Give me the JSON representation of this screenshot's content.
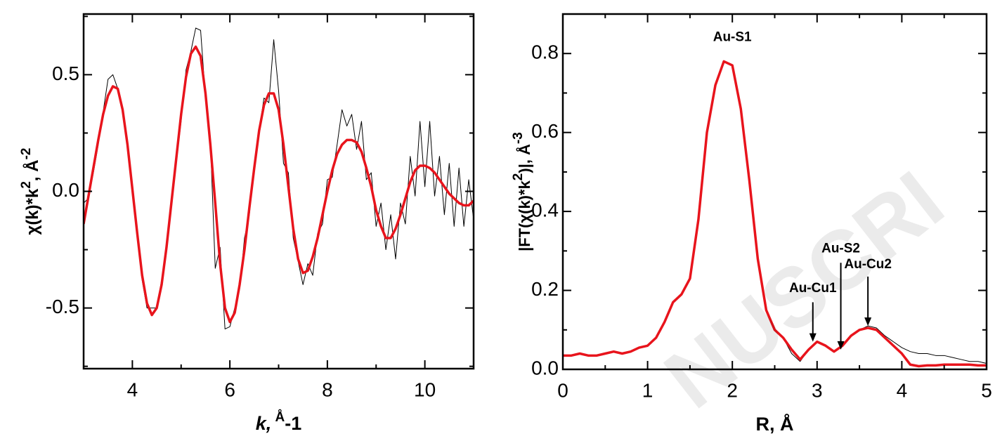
{
  "chart_data": [
    {
      "type": "line",
      "x": [
        3,
        3.1,
        3.2,
        3.3,
        3.4,
        3.5,
        3.6,
        3.7,
        3.8,
        3.9,
        4,
        4.1,
        4.2,
        4.3,
        4.4,
        4.5,
        4.6,
        4.7,
        4.8,
        4.9,
        5,
        5.1,
        5.2,
        5.3,
        5.4,
        5.5,
        5.6,
        5.7,
        5.8,
        5.9,
        6,
        6.1,
        6.2,
        6.3,
        6.4,
        6.5,
        6.6,
        6.7,
        6.8,
        6.9,
        7,
        7.1,
        7.2,
        7.3,
        7.4,
        7.5,
        7.6,
        7.7,
        7.8,
        7.9,
        8,
        8.1,
        8.2,
        8.3,
        8.4,
        8.5,
        8.6,
        8.7,
        8.8,
        8.9,
        9,
        9.1,
        9.2,
        9.3,
        9.4,
        9.5,
        9.6,
        9.7,
        9.8,
        9.9,
        10,
        10.1,
        10.2,
        10.3,
        10.4,
        10.5,
        10.6,
        10.7,
        10.8,
        10.9,
        11
      ],
      "series": [
        {
          "color": "#000000",
          "width": 1,
          "values": [
            -0.05,
            -0.03,
            0.08,
            0.2,
            0.34,
            0.48,
            0.5,
            0.44,
            0.36,
            0.2,
            0.02,
            -0.2,
            -0.38,
            -0.5,
            -0.5,
            -0.5,
            -0.38,
            -0.26,
            -0.04,
            0.12,
            0.3,
            0.52,
            0.6,
            0.7,
            0.69,
            0.4,
            0.22,
            -0.33,
            -0.24,
            -0.59,
            -0.58,
            -0.5,
            -0.42,
            -0.2,
            -0.1,
            0.12,
            0.26,
            0.4,
            0.38,
            0.65,
            0.43,
            0.12,
            0.08,
            -0.2,
            -0.3,
            -0.4,
            -0.31,
            -0.36,
            -0.18,
            -0.14,
            0.05,
            0.06,
            0.2,
            0.35,
            0.28,
            0.33,
            0.18,
            0.3,
            0.05,
            0.08,
            -0.15,
            -0.05,
            -0.25,
            -0.1,
            -0.29,
            -0.05,
            -0.14,
            0.15,
            -0.02,
            0.3,
            0.02,
            0.3,
            -0.02,
            0.15,
            -0.1,
            0.12,
            -0.15,
            0.1,
            -0.15,
            0.05,
            -0.12
          ]
        },
        {
          "color": "#e8141c",
          "width": 3.5,
          "values": [
            -0.14,
            -0.02,
            0.1,
            0.22,
            0.33,
            0.41,
            0.45,
            0.44,
            0.35,
            0.2,
            0.01,
            -0.18,
            -0.36,
            -0.48,
            -0.53,
            -0.5,
            -0.4,
            -0.24,
            -0.05,
            0.14,
            0.33,
            0.49,
            0.59,
            0.62,
            0.58,
            0.42,
            0.2,
            -0.05,
            -0.31,
            -0.5,
            -0.56,
            -0.52,
            -0.4,
            -0.25,
            -0.07,
            0.1,
            0.26,
            0.37,
            0.42,
            0.42,
            0.35,
            0.2,
            0.02,
            -0.16,
            -0.29,
            -0.35,
            -0.34,
            -0.28,
            -0.2,
            -0.1,
            0,
            0.09,
            0.16,
            0.2,
            0.22,
            0.22,
            0.21,
            0.17,
            0.1,
            0.02,
            -0.08,
            -0.15,
            -0.2,
            -0.2,
            -0.16,
            -0.1,
            -0.03,
            0.04,
            0.09,
            0.11,
            0.11,
            0.1,
            0.08,
            0.05,
            0.02,
            -0.01,
            -0.03,
            -0.05,
            -0.06,
            -0.06,
            -0.04
          ]
        }
      ],
      "xlim": [
        3,
        11
      ],
      "ylim": [
        -0.76,
        0.76
      ],
      "xticks": [
        4,
        6,
        8,
        10
      ],
      "yticks": [
        -0.5,
        {
          "value": 0,
          "label": "0.0"
        },
        0.5
      ],
      "xlabel_parts": [
        "k,",
        " Å",
        "-1"
      ],
      "ylabel_parts": [
        "χ(k)*k",
        "2",
        ", Å",
        "-2"
      ]
    },
    {
      "type": "line",
      "x": [
        0,
        0.1,
        0.2,
        0.3,
        0.4,
        0.5,
        0.6,
        0.7,
        0.8,
        0.9,
        1,
        1.1,
        1.2,
        1.3,
        1.4,
        1.5,
        1.6,
        1.7,
        1.8,
        1.9,
        2,
        2.1,
        2.2,
        2.3,
        2.4,
        2.5,
        2.6,
        2.7,
        2.8,
        2.9,
        3,
        3.1,
        3.2,
        3.3,
        3.4,
        3.5,
        3.6,
        3.7,
        3.8,
        3.9,
        4,
        4.1,
        4.2,
        4.3,
        4.4,
        4.5,
        4.6,
        4.7,
        4.8,
        4.9,
        5
      ],
      "series": [
        {
          "color": "#000000",
          "width": 1,
          "values": [
            0.035,
            0.035,
            0.04,
            0.035,
            0.035,
            0.04,
            0.045,
            0.04,
            0.045,
            0.055,
            0.06,
            0.08,
            0.12,
            0.17,
            0.19,
            0.23,
            0.38,
            0.6,
            0.72,
            0.78,
            0.77,
            0.66,
            0.48,
            0.28,
            0.15,
            0.1,
            0.08,
            0.04,
            0.02,
            0.05,
            0.07,
            0.06,
            0.045,
            0.06,
            0.085,
            0.1,
            0.11,
            0.105,
            0.085,
            0.07,
            0.055,
            0.045,
            0.04,
            0.04,
            0.035,
            0.035,
            0.03,
            0.025,
            0.02,
            0.02,
            0.015
          ]
        },
        {
          "color": "#e8141c",
          "width": 3.5,
          "values": [
            0.035,
            0.035,
            0.04,
            0.035,
            0.035,
            0.04,
            0.045,
            0.04,
            0.045,
            0.055,
            0.06,
            0.08,
            0.12,
            0.17,
            0.19,
            0.23,
            0.38,
            0.6,
            0.72,
            0.78,
            0.77,
            0.66,
            0.48,
            0.28,
            0.15,
            0.1,
            0.08,
            0.05,
            0.025,
            0.05,
            0.07,
            0.06,
            0.045,
            0.06,
            0.085,
            0.1,
            0.105,
            0.1,
            0.08,
            0.06,
            0.04,
            0.012,
            0.008,
            0.01,
            0.01,
            0.012,
            0.012,
            0.012,
            0.012,
            0.01,
            0.01
          ]
        }
      ],
      "xlim": [
        0,
        5
      ],
      "ylim": [
        0,
        0.9
      ],
      "xticks": [
        0,
        1,
        2,
        3,
        4,
        5
      ],
      "yticks": [
        {
          "value": 0,
          "label": "0.0"
        },
        0.2,
        0.4,
        0.6,
        0.8
      ],
      "xlabel_parts": [
        "R, Å"
      ],
      "ylabel_parts": [
        "|FT(χ(k)*k",
        "2",
        ")|, Å",
        "-3"
      ],
      "annotations": [
        "Au-S1",
        "Au-Cu1",
        "Au-S2",
        "Au-Cu2"
      ],
      "watermark": "NUSCRI"
    }
  ]
}
